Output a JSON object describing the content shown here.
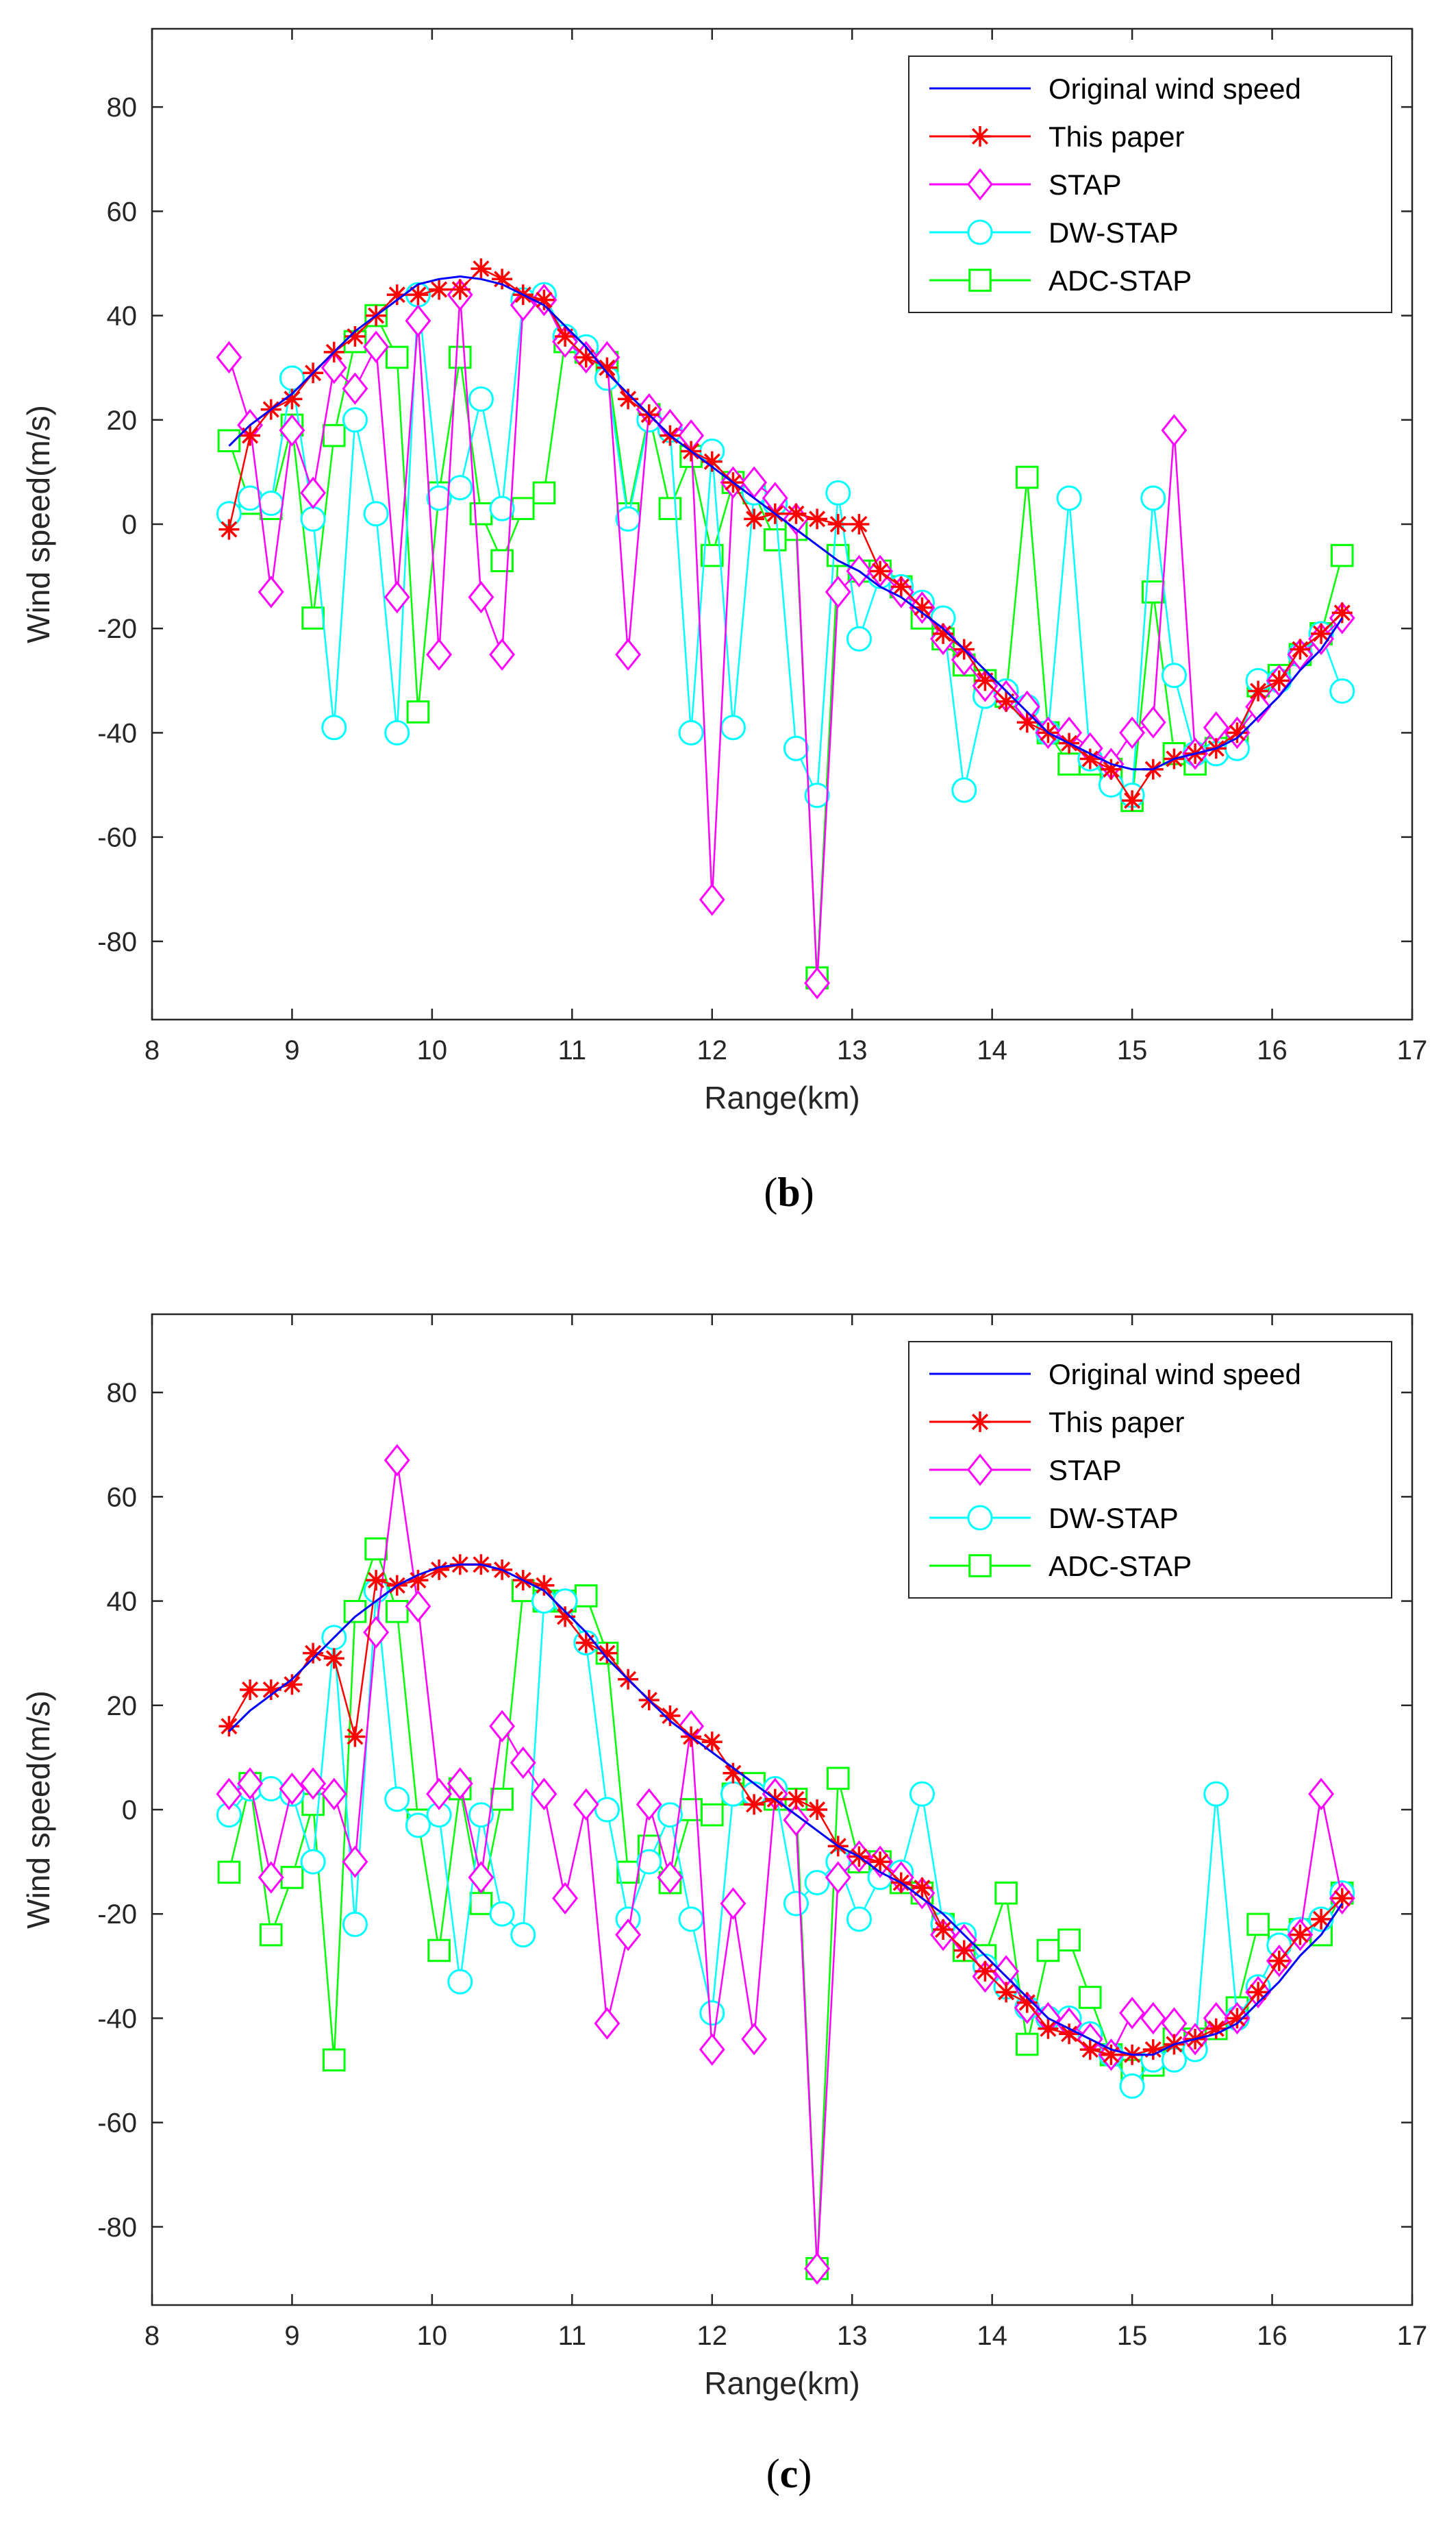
{
  "series_meta": [
    {
      "key": "orig",
      "name": "Original wind speed",
      "color": "#0000ff",
      "marker": "none"
    },
    {
      "key": "paper",
      "name": "This paper",
      "color": "#ff0000",
      "marker": "asterisk"
    },
    {
      "key": "stap",
      "name": "STAP",
      "color": "#ff00ff",
      "marker": "diamond"
    },
    {
      "key": "dw",
      "name": "DW-STAP",
      "color": "#00ffff",
      "marker": "circle"
    },
    {
      "key": "adc",
      "name": "ADC-STAP",
      "color": "#00ff00",
      "marker": "square"
    }
  ],
  "chart_data": [
    {
      "type": "line",
      "panel": "b",
      "caption_open": "(",
      "caption_letter": "b",
      "caption_close": ")",
      "xlabel": "Range(km)",
      "ylabel": "Wind speed(m/s)",
      "xlim": [
        8,
        17
      ],
      "ylim": [
        -95,
        95
      ],
      "xticks": [
        8,
        9,
        10,
        11,
        12,
        13,
        14,
        15,
        16,
        17
      ],
      "yticks": [
        -80,
        -60,
        -40,
        -20,
        0,
        20,
        40,
        60,
        80
      ],
      "legend_position": "top-right",
      "x": [
        8.55,
        8.7,
        8.85,
        9.0,
        9.15,
        9.3,
        9.45,
        9.6,
        9.75,
        9.9,
        10.05,
        10.2,
        10.35,
        10.5,
        10.65,
        10.8,
        10.95,
        11.1,
        11.25,
        11.4,
        11.55,
        11.7,
        11.85,
        12.0,
        12.15,
        12.3,
        12.45,
        12.6,
        12.75,
        12.9,
        13.05,
        13.2,
        13.35,
        13.5,
        13.65,
        13.8,
        13.95,
        14.1,
        14.25,
        14.4,
        14.55,
        14.7,
        14.85,
        15.0,
        15.15,
        15.3,
        15.45,
        15.6,
        15.75,
        15.9,
        16.05,
        16.2,
        16.35,
        16.5
      ],
      "series": [
        {
          "name": "Original wind speed",
          "values": [
            15,
            19,
            22,
            25,
            29,
            33,
            37,
            40,
            43,
            46,
            47,
            47.5,
            47,
            46,
            44,
            42,
            38,
            34,
            29,
            25,
            21,
            17,
            14,
            11,
            8,
            5,
            2,
            -1,
            -4,
            -7,
            -9,
            -12,
            -14,
            -17,
            -20,
            -24,
            -28,
            -32,
            -36,
            -40,
            -42,
            -44,
            -46,
            -47,
            -47,
            -45,
            -44,
            -43,
            -41,
            -37,
            -33,
            -28,
            -24,
            -18
          ]
        },
        {
          "name": "This paper",
          "values": [
            -1,
            17,
            22,
            24,
            29,
            33,
            36,
            40,
            44,
            44,
            45,
            45,
            49,
            47,
            44,
            43,
            36,
            32,
            30,
            24,
            21,
            17,
            14,
            12,
            8,
            1,
            2,
            2,
            1,
            0,
            0,
            -9,
            -12,
            -16,
            -21,
            -24,
            -30,
            -34,
            -38,
            -40,
            -42,
            -45,
            -47,
            -53,
            -47,
            -45,
            -44,
            -43,
            -40,
            -32,
            -30,
            -24,
            -21,
            -17
          ]
        },
        {
          "name": "STAP",
          "values": [
            32,
            19,
            -13,
            18,
            6,
            30,
            26,
            34,
            -14,
            39,
            -25,
            44,
            -14,
            -25,
            42,
            43,
            35,
            32,
            32,
            -25,
            22,
            19,
            17,
            -72,
            8,
            8,
            5,
            1,
            -88,
            -13,
            -9,
            -9,
            -13,
            -16,
            -22,
            -26,
            -31,
            -33,
            -35,
            -40,
            -40,
            -43,
            -46,
            -40,
            -38,
            18,
            -44,
            -39,
            -40,
            -35,
            -30,
            -25,
            -22,
            -18
          ]
        },
        {
          "name": "DW-STAP",
          "values": [
            2,
            5,
            4,
            28,
            1,
            -39,
            20,
            2,
            -40,
            44,
            5,
            7,
            24,
            3,
            43,
            44,
            36,
            34,
            28,
            1,
            20,
            18,
            -40,
            14,
            -39,
            6,
            4,
            -43,
            -52,
            6,
            -22,
            -10,
            -12,
            -15,
            -18,
            -51,
            -33,
            -32,
            -35,
            -40,
            5,
            -45,
            -50,
            -52,
            5,
            -29,
            -44,
            -44,
            -43,
            -30,
            -30,
            -25,
            -21,
            -32
          ]
        },
        {
          "name": "ADC-STAP",
          "values": [
            16,
            4,
            3,
            19,
            -18,
            17,
            35,
            40,
            32,
            -36,
            6,
            32,
            2,
            -7,
            3,
            6,
            35,
            33,
            31,
            2,
            21,
            3,
            13,
            -6,
            8,
            6,
            -3,
            -1,
            -87,
            -6,
            -9,
            -9,
            -12,
            -18,
            -22,
            -27,
            -30,
            -33,
            9,
            -40,
            -46,
            -46,
            -47,
            -53,
            -13,
            -44,
            -46,
            -43,
            -41,
            -31,
            -29,
            -25,
            -21,
            -6
          ]
        }
      ]
    },
    {
      "type": "line",
      "panel": "c",
      "caption_open": "(",
      "caption_letter": "c",
      "caption_close": ")",
      "xlabel": "Range(km)",
      "ylabel": "Wind speed(m/s)",
      "xlim": [
        8,
        17
      ],
      "ylim": [
        -95,
        95
      ],
      "xticks": [
        8,
        9,
        10,
        11,
        12,
        13,
        14,
        15,
        16,
        17
      ],
      "yticks": [
        -80,
        -60,
        -40,
        -20,
        0,
        20,
        40,
        60,
        80
      ],
      "legend_position": "top-right",
      "x": [
        8.55,
        8.7,
        8.85,
        9.0,
        9.15,
        9.3,
        9.45,
        9.6,
        9.75,
        9.9,
        10.05,
        10.2,
        10.35,
        10.5,
        10.65,
        10.8,
        10.95,
        11.1,
        11.25,
        11.4,
        11.55,
        11.7,
        11.85,
        12.0,
        12.15,
        12.3,
        12.45,
        12.6,
        12.75,
        12.9,
        13.05,
        13.2,
        13.35,
        13.5,
        13.65,
        13.8,
        13.95,
        14.1,
        14.25,
        14.4,
        14.55,
        14.7,
        14.85,
        15.0,
        15.15,
        15.3,
        15.45,
        15.6,
        15.75,
        15.9,
        16.05,
        16.2,
        16.35,
        16.5
      ],
      "series": [
        {
          "name": "Original wind speed",
          "values": [
            15,
            19,
            22,
            25,
            29,
            33,
            37,
            40,
            43,
            45,
            46.5,
            47,
            47,
            46,
            44,
            42,
            38,
            34,
            29,
            25,
            21,
            17,
            14,
            11,
            8,
            5,
            2,
            -1,
            -4,
            -7,
            -9,
            -12,
            -14,
            -17,
            -20,
            -24,
            -28,
            -32,
            -36,
            -40,
            -42,
            -44,
            -46,
            -47,
            -47,
            -45,
            -44,
            -43,
            -41,
            -37,
            -33,
            -28,
            -24,
            -18
          ]
        },
        {
          "name": "This paper",
          "values": [
            16,
            23,
            23,
            24,
            30,
            29,
            14,
            44,
            43,
            44,
            46,
            47,
            47,
            46,
            44,
            43,
            37,
            32,
            30,
            25,
            21,
            18,
            14,
            13,
            7,
            1,
            2,
            2,
            0,
            -7,
            -9,
            -10,
            -14,
            -15,
            -23,
            -27,
            -31,
            -35,
            -37,
            -42,
            -43,
            -46,
            -47,
            -47,
            -46,
            -45,
            -44,
            -42,
            -40,
            -35,
            -29,
            -24,
            -21,
            -17
          ]
        },
        {
          "name": "STAP",
          "values": [
            3,
            5,
            -13,
            4,
            5,
            3,
            -10,
            34,
            67,
            39,
            3,
            5,
            -13,
            16,
            9,
            3,
            -17,
            1,
            -41,
            -24,
            1,
            -13,
            16,
            -46,
            -18,
            -44,
            3,
            -2,
            -88,
            -13,
            -9,
            -10,
            -13,
            -16,
            -24,
            -25,
            -32,
            -31,
            -38,
            -40,
            -41,
            -44,
            -47,
            -39,
            -40,
            -41,
            -44,
            -40,
            -40,
            -35,
            -29,
            -24,
            3,
            -17
          ]
        },
        {
          "name": "DW-STAP",
          "values": [
            -1,
            4,
            4,
            3,
            -10,
            33,
            -22,
            42,
            2,
            -3,
            -1,
            -33,
            -1,
            -20,
            -24,
            40,
            40,
            32,
            0,
            -21,
            -10,
            -1,
            -21,
            -39,
            3,
            3,
            4,
            -18,
            -14,
            -10,
            -21,
            -13,
            -12,
            3,
            -22,
            -24,
            -30,
            -34,
            -38,
            -40,
            -40,
            -43,
            -47,
            -53,
            -48,
            -48,
            -46,
            3,
            -40,
            -34,
            -26,
            -23,
            -21,
            -16
          ]
        },
        {
          "name": "ADC-STAP",
          "values": [
            -12,
            5,
            -24,
            -13,
            1,
            -48,
            38,
            50,
            38,
            -2,
            -27,
            4,
            -18,
            2,
            42,
            40,
            40,
            41,
            30,
            -12,
            -7,
            -14,
            0,
            -1,
            3,
            5,
            2,
            2,
            -88,
            6,
            -10,
            -10,
            -14,
            -16,
            -22,
            -27,
            -28,
            -16,
            -45,
            -27,
            -25,
            -36,
            -47,
            -50,
            -49,
            -44,
            -44,
            -42,
            -38,
            -22,
            -25,
            -23,
            -24,
            -16
          ]
        }
      ]
    }
  ]
}
